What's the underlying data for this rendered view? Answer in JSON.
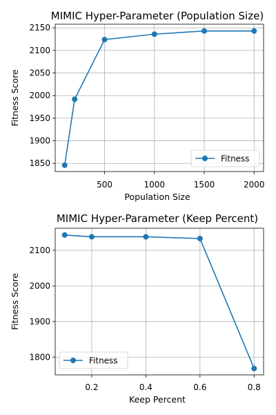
{
  "chart_data": [
    {
      "type": "line",
      "title": "MIMIC Hyper-Parameter (Population Size)",
      "xlabel": "Population Size",
      "ylabel": "Fitness Score",
      "x": [
        100,
        200,
        500,
        1000,
        1500,
        2000
      ],
      "series": [
        {
          "name": "Fitness",
          "values": [
            1846,
            1992,
            2124,
            2136,
            2143,
            2143
          ]
        }
      ],
      "xlim": [
        5,
        2095
      ],
      "ylim": [
        1832,
        2158
      ],
      "xticks": [
        500,
        1000,
        1500,
        2000
      ],
      "yticks": [
        1850,
        1900,
        1950,
        2000,
        2050,
        2100,
        2150
      ],
      "xtick_labels": [
        "500",
        "1000",
        "1500",
        "2000"
      ],
      "ytick_labels": [
        "1850",
        "1900",
        "1950",
        "2000",
        "2050",
        "2100",
        "2150"
      ],
      "grid": true,
      "legend_position": "lower right",
      "color": "#1f77b4"
    },
    {
      "type": "line",
      "title": "MIMIC Hyper-Parameter (Keep Percent)",
      "xlabel": "Keep Percent",
      "ylabel": "Fitness Score",
      "x": [
        0.1,
        0.2,
        0.4,
        0.6,
        0.8
      ],
      "series": [
        {
          "name": "Fitness",
          "values": [
            2143,
            2138,
            2138,
            2133,
            1768
          ]
        }
      ],
      "xlim": [
        0.065,
        0.835
      ],
      "ylim": [
        1750,
        2162
      ],
      "xticks": [
        0.2,
        0.4,
        0.6,
        0.8
      ],
      "yticks": [
        1800,
        1900,
        2000,
        2100
      ],
      "xtick_labels": [
        "0.2",
        "0.4",
        "0.6",
        "0.8"
      ],
      "ytick_labels": [
        "1800",
        "1900",
        "2000",
        "2100"
      ],
      "grid": true,
      "legend_position": "lower left",
      "color": "#1f77b4"
    }
  ]
}
